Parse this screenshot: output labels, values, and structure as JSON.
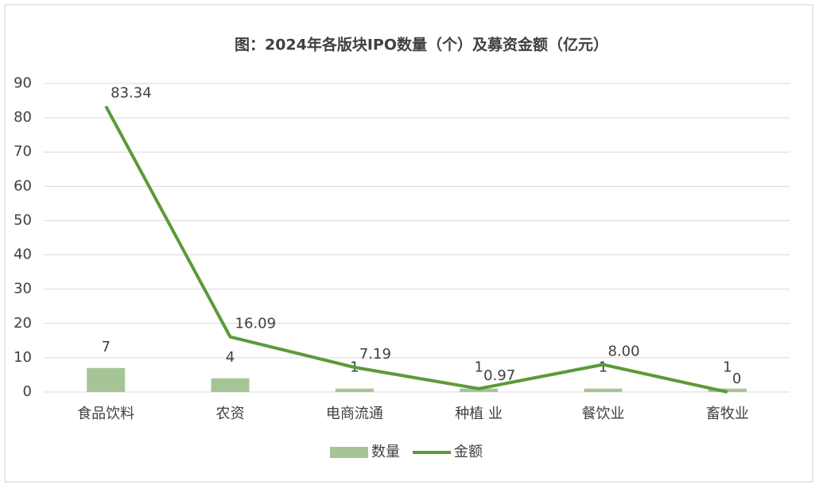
{
  "chart_data": {
    "type": "bar",
    "title": "图：2024年各版块IPO数量（个）及募资金额（亿元）",
    "categories": [
      "食品饮料",
      "农资",
      "电商流通",
      "种植 业",
      "餐饮业",
      "畜牧业"
    ],
    "series": [
      {
        "name": "数量",
        "type": "bar",
        "color": "#a5c597",
        "values": [
          7,
          4,
          1,
          1,
          1,
          1
        ]
      },
      {
        "name": "金额",
        "type": "line",
        "color": "#5b9a3a",
        "values": [
          83.34,
          16.09,
          7.19,
          0.97,
          8,
          0
        ],
        "value_labels": [
          "83.34",
          "16.09",
          "7.19",
          "0.97",
          "8.00",
          "0"
        ]
      }
    ],
    "ylim": [
      0,
      90
    ],
    "yticks": [
      0,
      10,
      20,
      30,
      40,
      50,
      60,
      70,
      80,
      90
    ],
    "grid": true,
    "legend": "bottom"
  }
}
